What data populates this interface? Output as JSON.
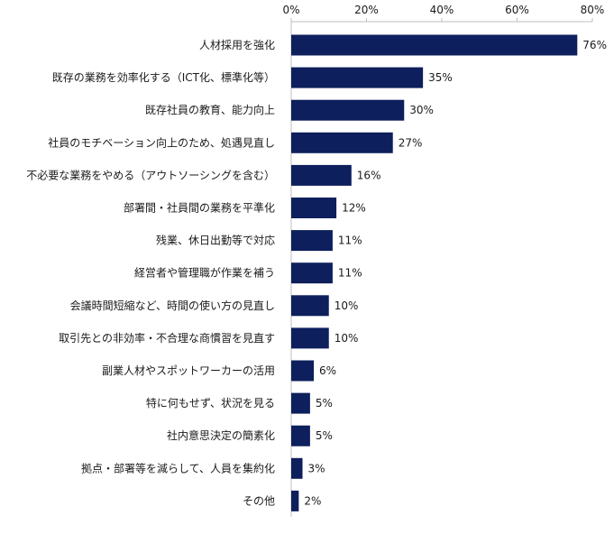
{
  "chart_data": {
    "type": "bar",
    "orientation": "horizontal",
    "xlim": [
      0,
      80
    ],
    "x_ticks": [
      0,
      20,
      40,
      60,
      80
    ],
    "x_tick_labels": [
      "0%",
      "20%",
      "40%",
      "60%",
      "80%"
    ],
    "x_axis_position": "top",
    "grid": false,
    "colors": {
      "bar": "#0d1f5c",
      "text": "#1a1a1a",
      "axis": "#bfbfbf"
    },
    "categories": [
      "人材採用を強化",
      "既存の業務を効率化する（ICT化、標準化等）",
      "既存社員の教育、能力向上",
      "社員のモチベーション向上のため、処遇見直し",
      "不必要な業務をやめる（アウトソーシングを含む）",
      "部署間・社員間の業務を平準化",
      "残業、休日出勤等で対応",
      "経営者や管理職が作業を補う",
      "会議時間短縮など、時間の使い方の見直し",
      "取引先との非効率・不合理な商慣習を見直す",
      "副業人材やスポットワーカーの活用",
      "特に何もせず、状況を見る",
      "社内意思決定の簡素化",
      "拠点・部署等を減らして、人員を集約化",
      "その他"
    ],
    "values": [
      76,
      35,
      30,
      27,
      16,
      12,
      11,
      11,
      10,
      10,
      6,
      5,
      5,
      3,
      2
    ],
    "value_labels": [
      "76%",
      "35%",
      "30%",
      "27%",
      "16%",
      "12%",
      "11%",
      "11%",
      "10%",
      "10%",
      "6%",
      "5%",
      "5%",
      "3%",
      "2%"
    ]
  }
}
